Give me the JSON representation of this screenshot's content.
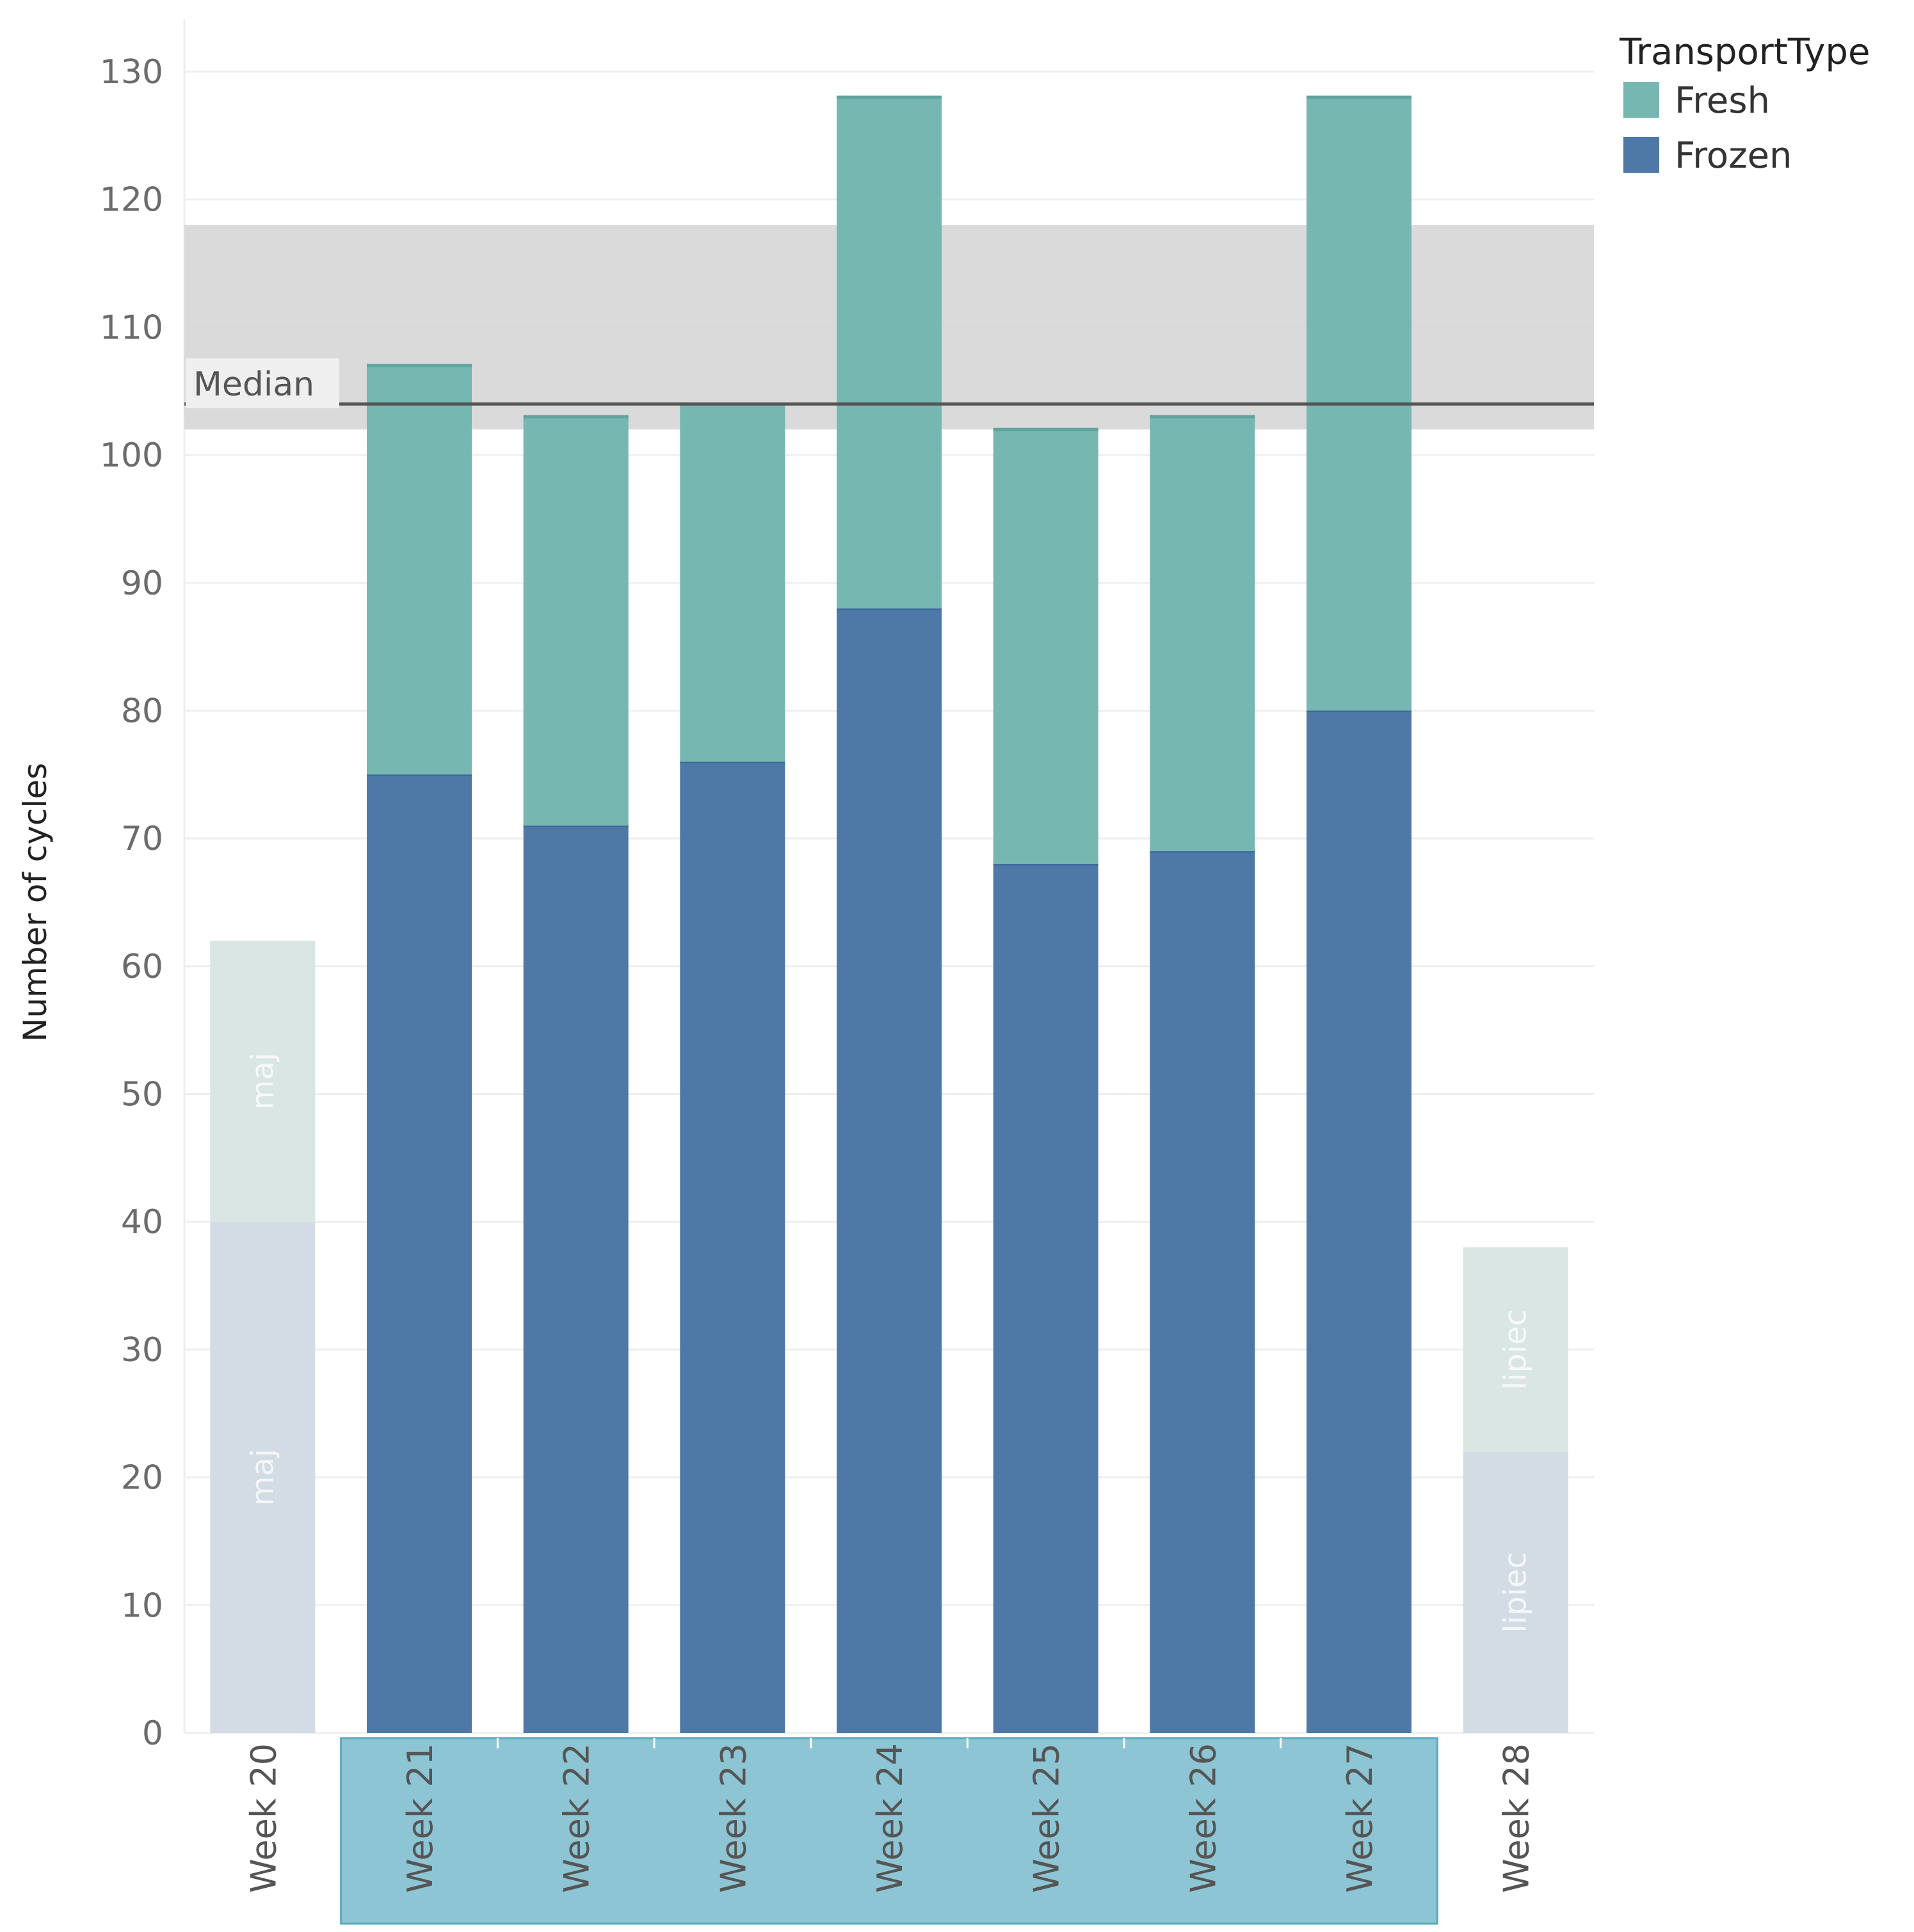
{
  "chart_data": {
    "type": "bar",
    "stacked": true,
    "title": "",
    "xlabel": "",
    "ylabel": "Number of cycles",
    "ylim": [
      0,
      130
    ],
    "yticks": [
      0,
      10,
      20,
      30,
      40,
      50,
      60,
      70,
      80,
      90,
      100,
      110,
      120,
      130
    ],
    "categories": [
      "Week 20",
      "Week 21",
      "Week 22",
      "Week 23",
      "Week 24",
      "Week 25",
      "Week 26",
      "Week 27",
      "Week 28"
    ],
    "highlighted_categories": [
      "Week 21",
      "Week 22",
      "Week 23",
      "Week 24",
      "Week 25",
      "Week 26",
      "Week 27"
    ],
    "series": [
      {
        "name": "Frozen",
        "color": "#4e79a7",
        "values": [
          40,
          75,
          71,
          76,
          88,
          68,
          69,
          80,
          22
        ]
      },
      {
        "name": "Fresh",
        "color": "#76b7b2",
        "values": [
          22,
          32,
          32,
          28,
          40,
          34,
          34,
          48,
          16
        ]
      }
    ],
    "legend": {
      "title": "TransportType",
      "position": "top-right",
      "entries": [
        "Fresh",
        "Frozen"
      ]
    },
    "reference_line": {
      "label": "Median",
      "value": 104
    },
    "reference_band": {
      "low": 102,
      "high": 118
    },
    "month_labels": [
      {
        "category": "Week 20",
        "text": "maj"
      },
      {
        "category": "Week 28",
        "text": "lipiec"
      }
    ],
    "grid": true
  }
}
